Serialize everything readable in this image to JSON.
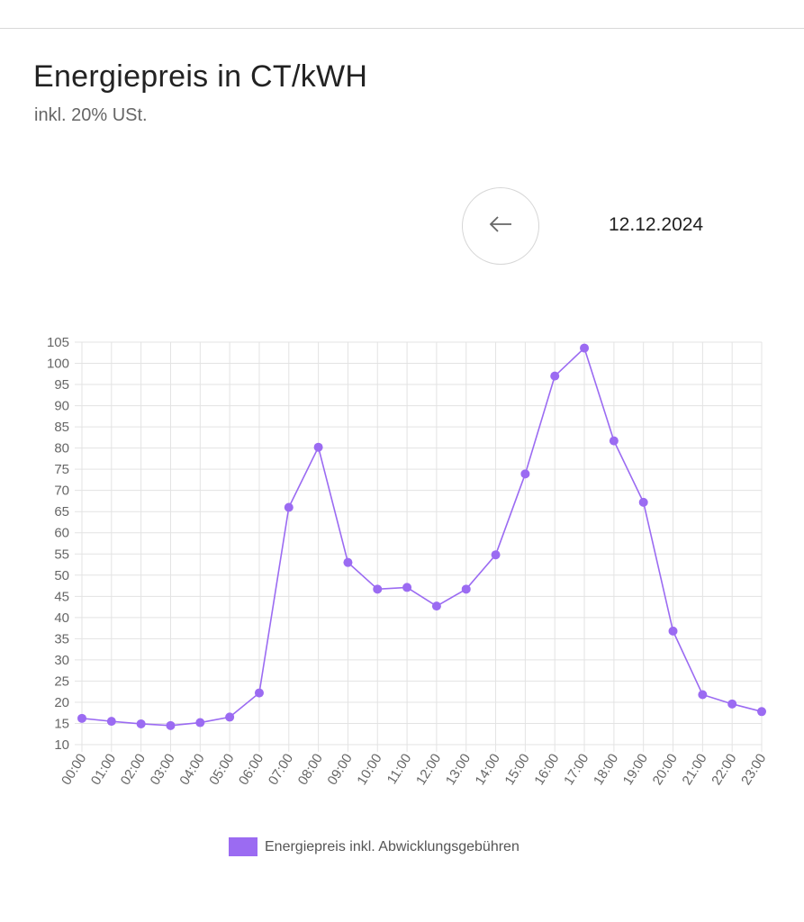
{
  "page": {
    "title": "Energiepreis in CT/kWH",
    "subtitle": "inkl. 20% USt.",
    "date": "12.12.2024"
  },
  "icons": {
    "back": "arrow-left-icon"
  },
  "colors": {
    "series": "#9b6bf2",
    "grid": "#e3e3e3",
    "axis_text": "#666666"
  },
  "chart_data": {
    "type": "line",
    "categories": [
      "00:00",
      "01:00",
      "02:00",
      "03:00",
      "04:00",
      "05:00",
      "06:00",
      "07:00",
      "08:00",
      "09:00",
      "10:00",
      "11:00",
      "12:00",
      "13:00",
      "14:00",
      "15:00",
      "16:00",
      "17:00",
      "18:00",
      "19:00",
      "20:00",
      "21:00",
      "22:00",
      "23:00"
    ],
    "series": [
      {
        "name": "Energiepreis inkl. Abwicklungsgebühren",
        "values": [
          16.2,
          15.5,
          14.9,
          14.5,
          15.2,
          16.5,
          22.2,
          66,
          80.2,
          53,
          46.7,
          47.1,
          42.7,
          46.7,
          54.8,
          73.9,
          97,
          103.6,
          81.7,
          67.2,
          36.8,
          21.8,
          19.6,
          17.8
        ]
      }
    ],
    "ylim": [
      10,
      105
    ],
    "yticks": [
      10,
      15,
      20,
      25,
      30,
      35,
      40,
      45,
      50,
      55,
      60,
      65,
      70,
      75,
      80,
      85,
      90,
      95,
      100,
      105
    ],
    "grid": true,
    "legend": "bottom-center",
    "xlabel": "",
    "ylabel": ""
  }
}
